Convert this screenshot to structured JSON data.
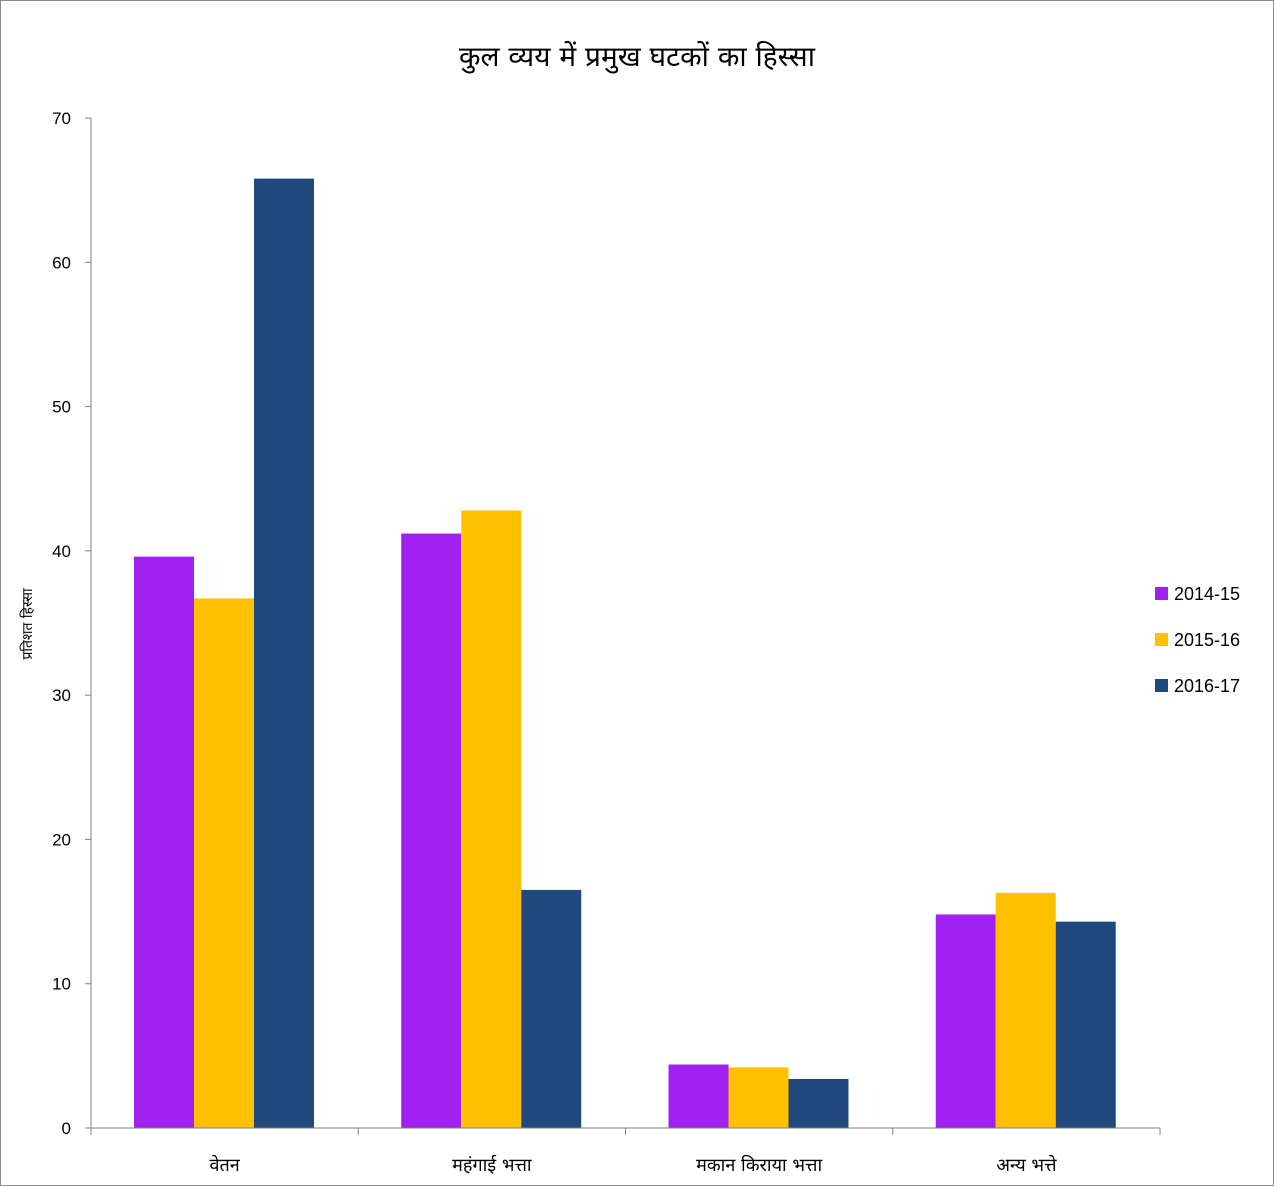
{
  "chart_data": {
    "type": "bar",
    "title": "कुल व्यय में प्रमुख घटकों का हिस्सा",
    "xlabel": "",
    "ylabel": "प्रतिशत हिस्सा",
    "ylim": [
      0,
      70
    ],
    "yticks": [
      0,
      10,
      20,
      30,
      40,
      50,
      60,
      70
    ],
    "grid": false,
    "legend_position": "right",
    "categories": [
      "वेतन",
      "महंगाई भत्ता",
      "मकान किराया भत्ता",
      "अन्य भत्ते"
    ],
    "series": [
      {
        "name": "2014-15",
        "color": "#a020f0",
        "values": [
          39.6,
          41.2,
          4.4,
          14.8
        ]
      },
      {
        "name": "2015-16",
        "color": "#ffc000",
        "values": [
          36.7,
          42.8,
          4.2,
          16.3
        ]
      },
      {
        "name": "2016-17",
        "color": "#1f497d",
        "values": [
          65.8,
          16.5,
          3.4,
          14.3
        ]
      }
    ]
  }
}
